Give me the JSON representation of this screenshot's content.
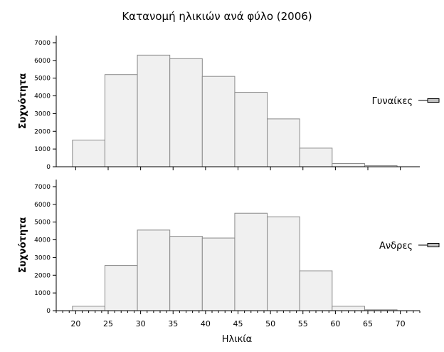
{
  "chart_data": {
    "type": "bar",
    "title": "Κατανομή ηλικιών ανά φύλο (2006)",
    "xlabel": "Ηλικία",
    "ylabel": "Συχνότητα",
    "xlim": [
      17,
      73
    ],
    "ylim": [
      0,
      7400
    ],
    "x_ticks": [
      "20",
      "25",
      "30",
      "35",
      "40",
      "45",
      "50",
      "55",
      "60",
      "65",
      "70"
    ],
    "y_ticks": [
      "0",
      "1000",
      "2000",
      "3000",
      "4000",
      "5000",
      "6000",
      "7000"
    ],
    "bin_edges": [
      19.5,
      24.5,
      29.5,
      34.5,
      39.5,
      44.5,
      49.5,
      54.5,
      59.5,
      64.5,
      69.5,
      74.5
    ],
    "panels": [
      {
        "name": "Γυναίκες",
        "values": [
          1500,
          5200,
          6300,
          6100,
          5100,
          4200,
          2700,
          1050,
          180,
          60,
          0
        ]
      },
      {
        "name": "Ανδρες",
        "values": [
          250,
          2550,
          4550,
          4200,
          4100,
          5500,
          5300,
          2250,
          250,
          50,
          0
        ]
      }
    ],
    "legend_position": "right",
    "grid": false
  }
}
